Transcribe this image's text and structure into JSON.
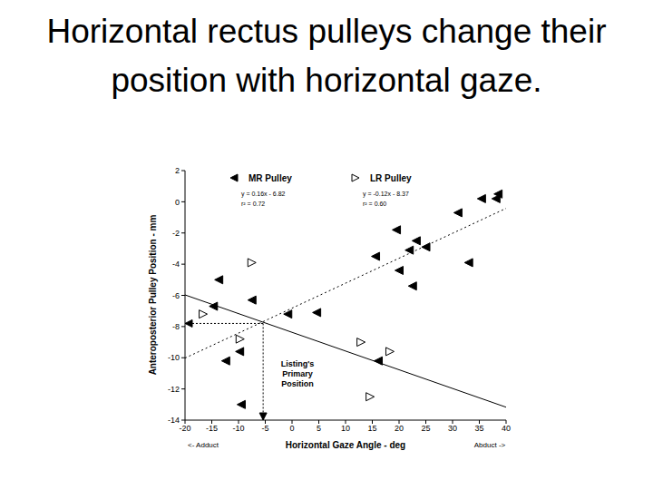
{
  "chart_data": {
    "type": "scatter",
    "title": "Horizontal rectus pulleys change their position with horizontal gaze.",
    "x_label": "Horizontal Gaze Angle - deg",
    "y_label": "Anteroposterior Pulley Position - mm",
    "x_left_label": "<- Adduct",
    "x_right_label": "Abduct ->",
    "xlim": [
      -20,
      40
    ],
    "xticks": [
      -20,
      -15,
      -10,
      -5,
      0,
      5,
      10,
      15,
      20,
      25,
      30,
      35,
      40
    ],
    "ylim": [
      -14,
      2
    ],
    "yticks": [
      -14,
      -12,
      -10,
      -8,
      -6,
      -4,
      -2,
      0,
      2
    ],
    "grid": false,
    "series": [
      {
        "name": "MR Pulley",
        "color": "#000000",
        "marker": "filled-triangle-left",
        "line_style": "dotted",
        "x": [
          -13.7,
          -14.7,
          -7.5,
          -0.8,
          4.6,
          -9.8,
          -12.4,
          -9.5,
          15.6,
          19.5,
          20.0,
          22.5,
          21.9,
          23.2,
          25.0,
          31.0,
          33.0,
          35.4,
          38.1,
          38.5,
          16.1
        ],
        "values": [
          -5.0,
          -6.7,
          -6.3,
          -7.2,
          -7.1,
          -9.6,
          -10.2,
          -13.0,
          -3.5,
          -1.8,
          -4.4,
          -5.4,
          -3.1,
          -2.5,
          -2.9,
          -0.7,
          -3.9,
          0.2,
          0.2,
          0.5,
          -10.2
        ],
        "fit": {
          "slope": 0.16,
          "intercept": -6.82,
          "equation": "y = 0.16x - 6.82",
          "r2": "r² = 0.72"
        }
      },
      {
        "name": "LR Pulley",
        "color": "#000000",
        "marker": "open-triangle-right",
        "line_style": "solid",
        "x": [
          -7.5,
          -16.6,
          -9.7,
          12.9,
          18.3,
          14.6
        ],
        "values": [
          -3.9,
          -7.2,
          -8.8,
          -9.0,
          -9.6,
          -12.5
        ],
        "fit": {
          "slope": -0.12,
          "intercept": -8.37,
          "equation": "y = -0.12x - 8.37",
          "r2": "r² = 0.60"
        }
      }
    ],
    "annotation": {
      "text": "Listing's\nPrimary\nPosition",
      "x": -5.4,
      "y": -7.8
    }
  }
}
